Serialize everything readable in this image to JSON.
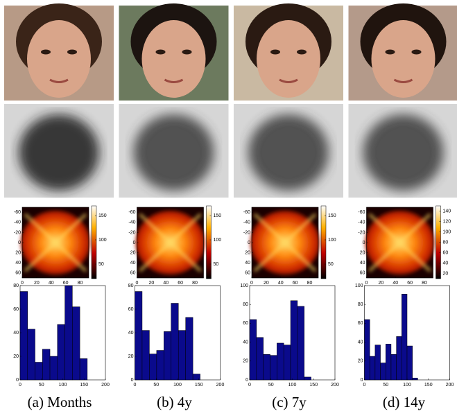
{
  "panels": [
    {
      "caption": "(a) Months",
      "heatmap": {
        "xlim": [
          0,
          92
        ],
        "ylim": [
          -70,
          70
        ],
        "xticks": [
          0,
          20,
          40,
          60,
          80
        ],
        "yticks": [
          -60,
          -40,
          -20,
          0,
          20,
          40,
          60
        ],
        "clim": [
          20,
          170
        ],
        "cticks": [
          50,
          100,
          150
        ]
      },
      "histogram": {
        "type": "histogram",
        "color": "#0a0a8c",
        "bins": [
          0,
          17.5,
          35,
          52.5,
          70,
          87.5,
          105,
          122.5,
          140,
          157.5
        ],
        "counts": [
          75,
          43,
          15,
          26,
          20,
          47,
          80,
          62,
          18
        ],
        "xlim": [
          0,
          200
        ],
        "ylim": [
          0,
          80
        ],
        "xticks": [
          0,
          50,
          100,
          150,
          200
        ],
        "yticks": [
          0,
          20,
          40,
          60,
          80
        ]
      }
    },
    {
      "caption": "(b) 4y",
      "heatmap": {
        "xlim": [
          0,
          92
        ],
        "ylim": [
          -70,
          70
        ],
        "xticks": [
          0,
          20,
          40,
          60,
          80
        ],
        "yticks": [
          -60,
          -40,
          -20,
          0,
          20,
          40,
          60
        ],
        "clim": [
          20,
          170
        ],
        "cticks": [
          50,
          100,
          150
        ]
      },
      "histogram": {
        "type": "histogram",
        "color": "#0a0a8c",
        "bins": [
          0,
          17,
          34,
          51,
          68,
          85,
          102,
          119,
          136,
          153
        ],
        "counts": [
          75,
          42,
          22,
          25,
          41,
          65,
          42,
          53,
          5
        ],
        "xlim": [
          0,
          200
        ],
        "ylim": [
          0,
          80
        ],
        "xticks": [
          0,
          50,
          100,
          150,
          200
        ],
        "yticks": [
          0,
          20,
          40,
          60,
          80
        ]
      }
    },
    {
      "caption": "(c) 7y",
      "heatmap": {
        "xlim": [
          0,
          92
        ],
        "ylim": [
          -70,
          70
        ],
        "xticks": [
          0,
          20,
          40,
          60,
          80
        ],
        "yticks": [
          -60,
          -40,
          -20,
          0,
          20,
          40,
          60
        ],
        "clim": [
          20,
          170
        ],
        "cticks": [
          50,
          100,
          150
        ]
      },
      "histogram": {
        "type": "histogram",
        "color": "#0a0a8c",
        "bins": [
          0,
          16,
          32,
          48,
          64,
          80,
          96,
          112,
          128,
          144
        ],
        "counts": [
          64,
          45,
          27,
          26,
          39,
          37,
          84,
          78,
          3
        ],
        "xlim": [
          0,
          200
        ],
        "ylim": [
          0,
          100
        ],
        "xticks": [
          0,
          50,
          100,
          150,
          200
        ],
        "yticks": [
          0,
          20,
          40,
          60,
          80,
          100
        ]
      }
    },
    {
      "caption": "(d) 14y",
      "heatmap": {
        "xlim": [
          0,
          92
        ],
        "ylim": [
          -70,
          70
        ],
        "xticks": [
          0,
          20,
          40,
          60,
          80
        ],
        "yticks": [
          -60,
          -40,
          -20,
          0,
          20,
          40,
          60
        ],
        "clim": [
          10,
          150
        ],
        "cticks": [
          20,
          40,
          60,
          80,
          100,
          120,
          140
        ]
      },
      "histogram": {
        "type": "histogram",
        "color": "#0a0a8c",
        "bins": [
          0,
          12.5,
          25,
          37.5,
          50,
          62.5,
          75,
          87.5,
          100,
          112.5,
          125
        ],
        "counts": [
          64,
          25,
          37,
          18,
          38,
          27,
          46,
          91,
          36,
          2
        ],
        "xlim": [
          0,
          200
        ],
        "ylim": [
          0,
          100
        ],
        "xticks": [
          0,
          50,
          100,
          150,
          200
        ],
        "yticks": [
          0,
          20,
          40,
          60,
          80,
          100
        ]
      }
    }
  ]
}
